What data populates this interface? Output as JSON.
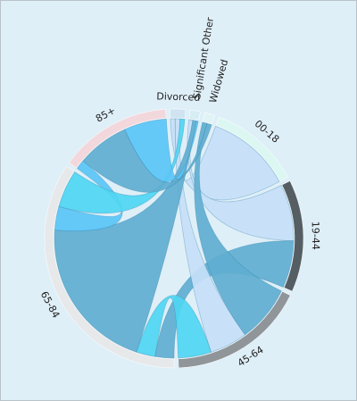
{
  "chart_data": {
    "type": "chord",
    "title": "",
    "groups": [
      {
        "label": "Divorced",
        "value": 3,
        "color": "#cfe3f0"
      },
      {
        "label": "Significant Other",
        "value": 2,
        "color": "#d7edf4"
      },
      {
        "label": "Widowed",
        "value": 2,
        "color": "#e0f3f5"
      },
      {
        "label": "00-18",
        "value": 18,
        "color": "#dcf7f2"
      },
      {
        "label": "19-44",
        "value": 22,
        "color": "#555f63"
      },
      {
        "label": "45-64",
        "value": 27,
        "color": "#8f9599"
      },
      {
        "label": "65-84",
        "value": 54,
        "color": "#e6e8ea"
      },
      {
        "label": "85+",
        "value": 22,
        "color": "#f2d8dc"
      }
    ],
    "chords": [
      {
        "source": "00-18",
        "source_value": 14,
        "target": "Divorced",
        "target_value": 1,
        "color": "#c6e0f7"
      },
      {
        "source": "19-44",
        "source_value": 12,
        "target": "Significant Other",
        "target_value": 1,
        "color": "#c6e0f7"
      },
      {
        "source": "19-44",
        "source_value": 10,
        "target": "65-84",
        "target_value": 4,
        "color": "#60aed0"
      },
      {
        "source": "45-64",
        "source_value": 12,
        "target": "Widowed",
        "target_value": 1,
        "color": "#60aed0"
      },
      {
        "source": "45-64",
        "source_value": 8,
        "target": "Divorced",
        "target_value": 1,
        "color": "#c6e0f7"
      },
      {
        "source": "45-64",
        "source_value": 7,
        "target": "65-84",
        "target_value": 4,
        "color": "#4fd6f2"
      },
      {
        "source": "65-84",
        "source_value": 33,
        "target": "Significant Other",
        "target_value": 1,
        "color": "#60aed0"
      },
      {
        "source": "65-84",
        "source_value": 5,
        "target": "85+",
        "target_value": 2,
        "color": "#5ac6f7"
      },
      {
        "source": "65-84",
        "source_value": 8,
        "target": "Divorced",
        "target_value": 1,
        "color": "#4fd6f2"
      },
      {
        "source": "85+",
        "source_value": 11,
        "target": "Widowed",
        "target_value": 1,
        "color": "#60aed0"
      },
      {
        "source": "85+",
        "source_value": 9,
        "target": "Significant Other",
        "target_value": 0.5,
        "color": "#5ac6f7"
      }
    ]
  }
}
